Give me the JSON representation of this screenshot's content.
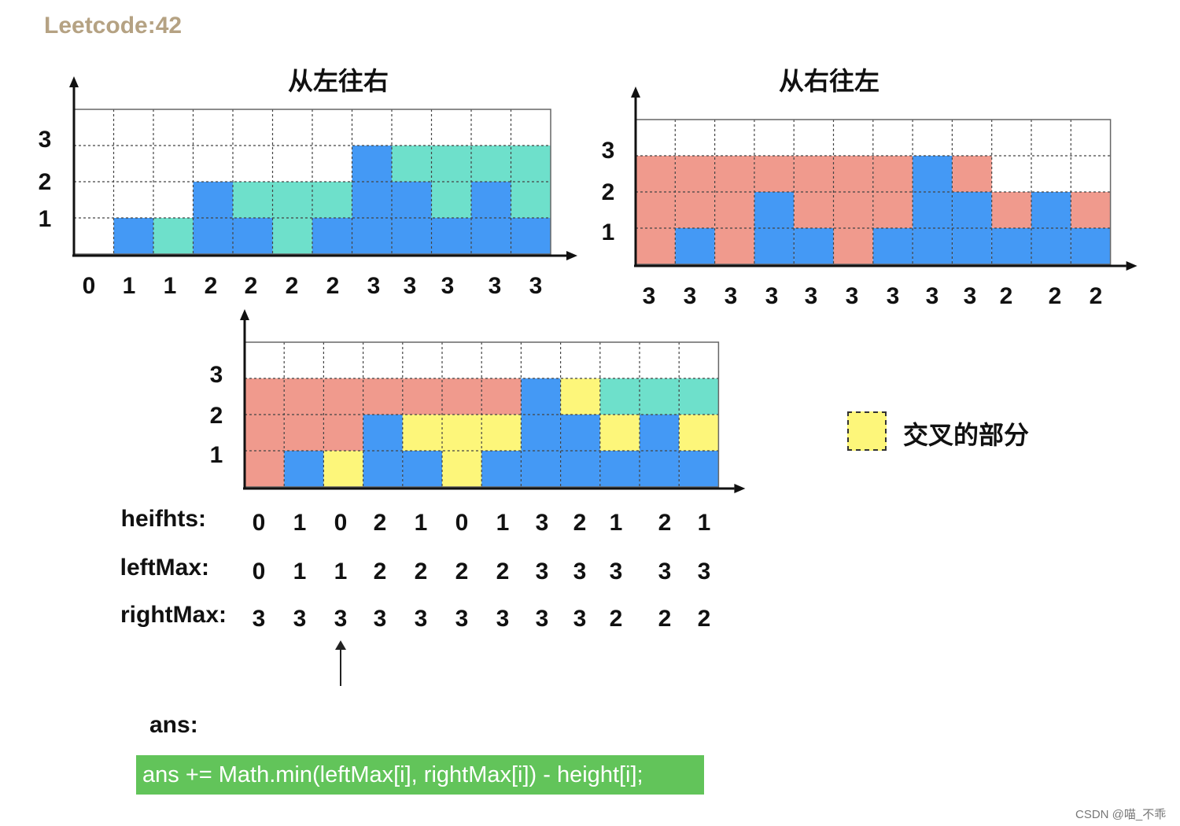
{
  "header": "Leetcode:42",
  "colors": {
    "pink": "#f09a8d",
    "blue": "#4499f5",
    "teal": "#6ee0cb",
    "yellow": "#fdf67a"
  },
  "panels": [
    {
      "title": "从左往右",
      "y_ticks": [
        "1",
        "2",
        "3"
      ],
      "rows": [
        {
          "values": [
            "0",
            "1",
            "1",
            "2",
            "2",
            "2",
            "2",
            "3",
            "3",
            "3",
            "3",
            "3"
          ]
        }
      ]
    },
    {
      "title": "从右往左",
      "y_ticks": [
        "1",
        "2",
        "3"
      ],
      "rows": [
        {
          "values": [
            "3",
            "3",
            "3",
            "3",
            "3",
            "3",
            "3",
            "3",
            "3",
            "2",
            "2",
            "2"
          ]
        }
      ]
    },
    {
      "title": "",
      "y_ticks": [
        "1",
        "2",
        "3"
      ],
      "rows": [
        {
          "label": "heifhts:",
          "values": [
            "0",
            "1",
            "0",
            "2",
            "1",
            "0",
            "1",
            "3",
            "2",
            "1",
            "2",
            "1"
          ]
        },
        {
          "label": "leftMax:",
          "values": [
            "0",
            "1",
            "1",
            "2",
            "2",
            "2",
            "2",
            "3",
            "3",
            "3",
            "3",
            "3"
          ]
        },
        {
          "label": "rightMax:",
          "values": [
            "3",
            "3",
            "3",
            "3",
            "3",
            "3",
            "3",
            "3",
            "3",
            "2",
            "2",
            "2"
          ]
        }
      ]
    }
  ],
  "legend": {
    "label": "交叉的部分"
  },
  "ans_label": "ans:",
  "code": "ans += Math.min(leftMax[i], rightMax[i]) - height[i];",
  "watermark": "CSDN @喵_不乖"
}
